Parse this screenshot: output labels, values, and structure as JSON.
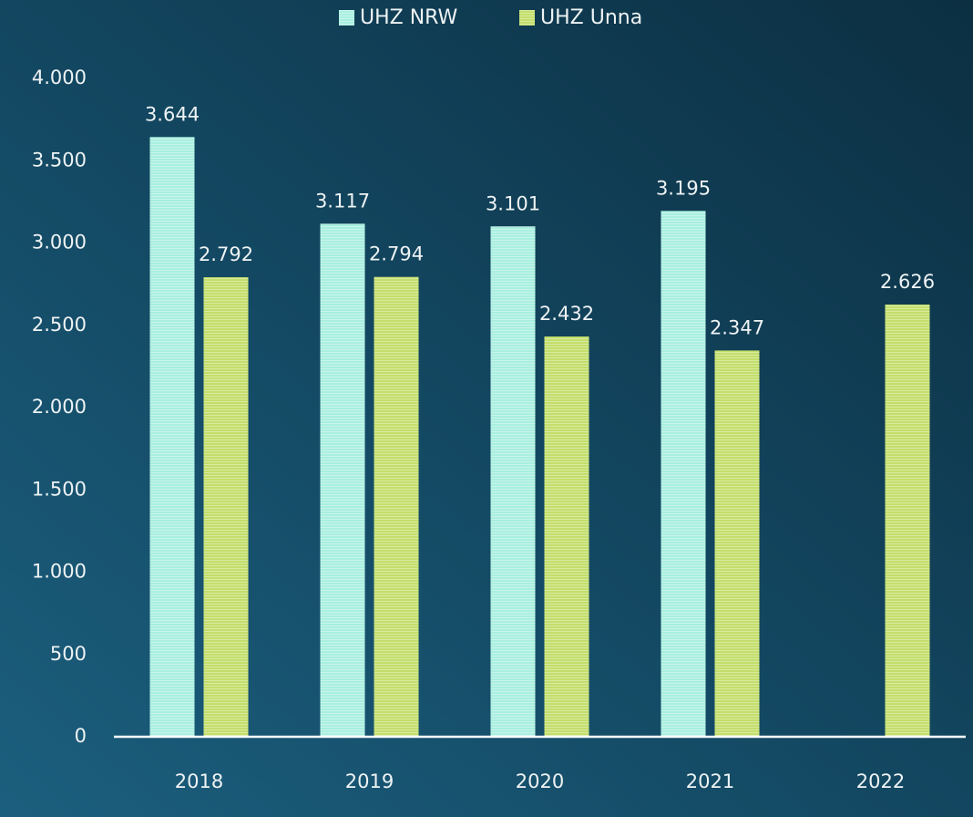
{
  "chart_data": {
    "type": "bar",
    "categories": [
      "2018",
      "2019",
      "2020",
      "2021",
      "2022"
    ],
    "series": [
      {
        "name": "UHZ NRW",
        "color": "#a9efe0",
        "values": [
          3644,
          3117,
          3101,
          3195,
          null
        ],
        "value_labels": [
          "3.644",
          "3.117",
          "3.101",
          "3.195",
          null
        ]
      },
      {
        "name": "UHZ Unna",
        "color": "#c3de6b",
        "values": [
          2792,
          2794,
          2432,
          2347,
          2626
        ],
        "value_labels": [
          "2.792",
          "2.794",
          "2.432",
          "2.347",
          "2.626"
        ]
      }
    ],
    "ylim": [
      0,
      4000
    ],
    "yticks": [
      0,
      500,
      {
        "value": 1000,
        "label": "1.000"
      },
      {
        "value": 1500,
        "label": "1.500"
      },
      {
        "value": 2000,
        "label": "2.000"
      },
      {
        "value": 2500,
        "label": "2.500"
      },
      {
        "value": 3000,
        "label": "3.000"
      },
      {
        "value": 3500,
        "label": "3.500"
      },
      {
        "value": 4000,
        "label": "4.000"
      }
    ],
    "grid": false,
    "legend": "top"
  }
}
